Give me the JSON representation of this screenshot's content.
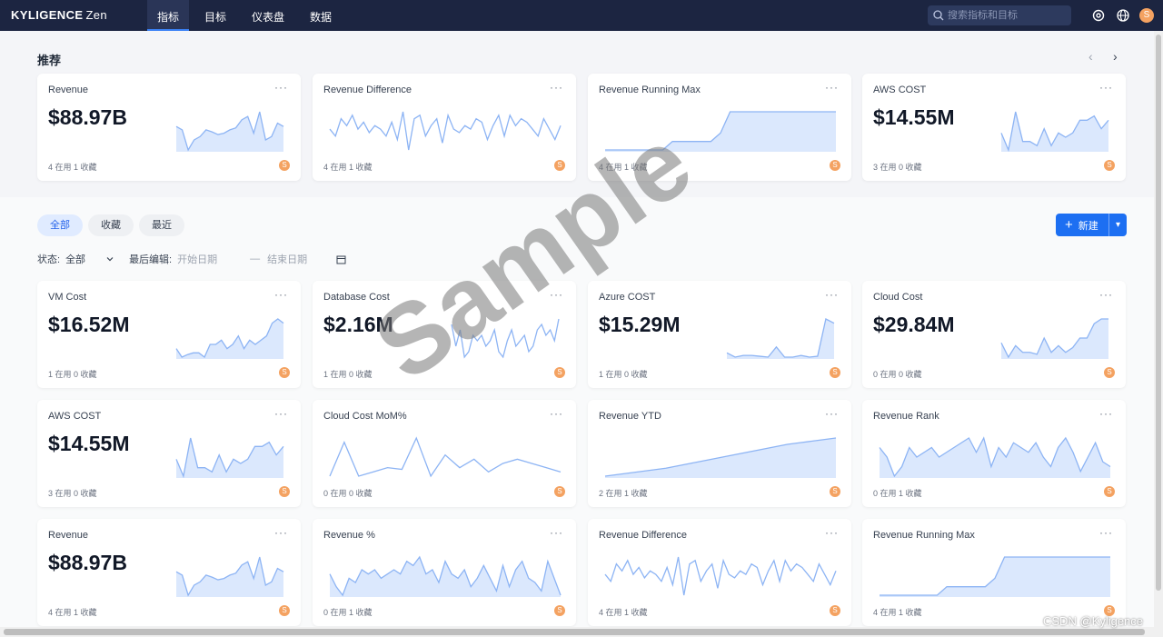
{
  "app": {
    "brand": "KYLIGENCE",
    "brand_suffix": "Zen"
  },
  "nav": [
    {
      "label": "指标",
      "active": true
    },
    {
      "label": "目标",
      "active": false
    },
    {
      "label": "仪表盘",
      "active": false
    },
    {
      "label": "数据",
      "active": false
    }
  ],
  "search": {
    "placeholder": "搜索指标和目标"
  },
  "user": {
    "initial": "S"
  },
  "recommend": {
    "title": "推荐",
    "cards": [
      {
        "title": "Revenue",
        "value": "$88.97B",
        "footer": "4 在用 1 收藏",
        "spark": [
          40,
          35,
          5,
          20,
          25,
          35,
          32,
          28,
          30,
          35,
          38,
          50,
          55,
          30,
          62,
          20,
          25,
          45,
          40
        ],
        "fill": true
      },
      {
        "title": "Revenue Difference",
        "value": "",
        "footer": "4 在用 1 收藏",
        "spark": [
          30,
          20,
          45,
          35,
          50,
          30,
          40,
          25,
          35,
          30,
          20,
          40,
          15,
          55,
          0,
          45,
          50,
          20,
          35,
          45,
          10,
          50,
          30,
          25,
          35,
          30,
          45,
          40,
          15,
          35,
          50,
          20,
          50,
          35,
          45,
          40,
          30,
          20,
          45,
          30,
          15,
          35
        ],
        "fill": false
      },
      {
        "title": "Revenue Running Max",
        "value": "",
        "footer": "4 在用 1 收藏",
        "spark": [
          0,
          0,
          0,
          0,
          0,
          0,
          0,
          10,
          10,
          10,
          10,
          10,
          20,
          45,
          45,
          45,
          45,
          45,
          45,
          45,
          45,
          45,
          45,
          45,
          45
        ],
        "fill": true
      },
      {
        "title": "AWS COST",
        "value": "$14.55M",
        "footer": "3 在用 0 收藏",
        "spark": [
          20,
          0,
          45,
          10,
          10,
          5,
          25,
          5,
          20,
          15,
          20,
          35,
          35,
          40,
          25,
          35
        ],
        "fill": true
      }
    ]
  },
  "tabs": [
    {
      "label": "全部",
      "active": true
    },
    {
      "label": "收藏",
      "active": false
    },
    {
      "label": "最近",
      "active": false
    }
  ],
  "new_button": {
    "label": "新建"
  },
  "filters": {
    "status_label": "状态:",
    "status_value": "全部",
    "edited_label": "最后编辑:",
    "start_placeholder": "开始日期",
    "separator": "—",
    "end_placeholder": "结束日期"
  },
  "cards": [
    {
      "title": "VM Cost",
      "value": "$16.52M",
      "footer": "1 在用 0 收藏",
      "spark": [
        10,
        0,
        3,
        5,
        5,
        0,
        15,
        15,
        20,
        10,
        15,
        25,
        10,
        20,
        15,
        20,
        25,
        40,
        45,
        40
      ],
      "fill": true
    },
    {
      "title": "Database Cost",
      "value": "$2.16M",
      "footer": "1 在用 0 收藏",
      "spark": [
        40,
        20,
        35,
        10,
        15,
        30,
        25,
        30,
        20,
        25,
        35,
        15,
        10,
        25,
        35,
        20,
        25,
        30,
        15,
        20,
        35,
        40,
        30,
        35,
        25,
        45
      ],
      "fill": false
    },
    {
      "title": "Azure COST",
      "value": "$15.29M",
      "footer": "1 在用 0 收藏",
      "spark": [
        5,
        0,
        2,
        2,
        1,
        0,
        12,
        0,
        0,
        2,
        0,
        1,
        45,
        40
      ],
      "fill": true
    },
    {
      "title": "Cloud Cost",
      "value": "$29.84M",
      "footer": "0 在用 0 收藏",
      "spark": [
        15,
        0,
        12,
        5,
        5,
        3,
        20,
        5,
        12,
        5,
        10,
        20,
        20,
        35,
        40,
        40
      ],
      "fill": true
    },
    {
      "title": "AWS COST",
      "value": "$14.55M",
      "footer": "3 在用 0 收藏",
      "spark": [
        20,
        0,
        45,
        10,
        10,
        5,
        25,
        5,
        20,
        15,
        20,
        35,
        35,
        40,
        25,
        35
      ],
      "fill": true
    },
    {
      "title": "Cloud Cost MoM%",
      "value": "",
      "footer": "0 在用 0 收藏",
      "spark": [
        0,
        40,
        0,
        5,
        10,
        8,
        45,
        0,
        25,
        10,
        20,
        5,
        15,
        20,
        15,
        10,
        5
      ],
      "fill": false
    },
    {
      "title": "Revenue YTD",
      "value": "",
      "footer": "2 在用 1 收藏",
      "spark": [
        0,
        2,
        4,
        6,
        8,
        10,
        13,
        16,
        19,
        22,
        25,
        28,
        31,
        34,
        37,
        40,
        42,
        44,
        46,
        48
      ],
      "fill": true
    },
    {
      "title": "Revenue Rank",
      "value": "",
      "footer": "0 在用 1 收藏",
      "spark": [
        35,
        25,
        5,
        15,
        35,
        25,
        30,
        35,
        25,
        30,
        35,
        40,
        45,
        30,
        45,
        15,
        35,
        25,
        40,
        35,
        30,
        40,
        25,
        15,
        35,
        45,
        30,
        10,
        25,
        40,
        20,
        15
      ],
      "fill": true
    },
    {
      "title": "Revenue",
      "value": "$88.97B",
      "footer": "4 在用 1 收藏",
      "spark": [
        40,
        35,
        5,
        20,
        25,
        35,
        32,
        28,
        30,
        35,
        38,
        50,
        55,
        30,
        62,
        20,
        25,
        45,
        40
      ],
      "fill": true
    },
    {
      "title": "Revenue %",
      "value": "",
      "footer": "0 在用 1 收藏",
      "spark": [
        30,
        15,
        5,
        25,
        20,
        35,
        30,
        35,
        25,
        30,
        35,
        30,
        45,
        40,
        50,
        30,
        35,
        20,
        45,
        30,
        25,
        35,
        15,
        25,
        40,
        25,
        10,
        40,
        15,
        35,
        45,
        25,
        20,
        10,
        45,
        25,
        5
      ],
      "fill": true
    },
    {
      "title": "Revenue Difference",
      "value": "",
      "footer": "4 在用 1 收藏",
      "spark": [
        30,
        20,
        45,
        35,
        50,
        30,
        40,
        25,
        35,
        30,
        20,
        40,
        15,
        55,
        0,
        45,
        50,
        20,
        35,
        45,
        10,
        50,
        30,
        25,
        35,
        30,
        45,
        40,
        15,
        35,
        50,
        20,
        50,
        35,
        45,
        40,
        30,
        20,
        45,
        30,
        15,
        35
      ],
      "fill": false
    },
    {
      "title": "Revenue Running Max",
      "value": "",
      "footer": "4 在用 1 收藏",
      "spark": [
        0,
        0,
        0,
        0,
        0,
        0,
        0,
        10,
        10,
        10,
        10,
        10,
        20,
        45,
        45,
        45,
        45,
        45,
        45,
        45,
        45,
        45,
        45,
        45,
        45
      ],
      "fill": true
    }
  ],
  "watermark": "Sample",
  "credit": "CSDN @Kyligence"
}
